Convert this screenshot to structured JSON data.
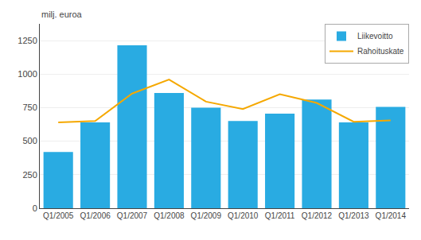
{
  "chart_data": {
    "type": "bar",
    "ylabel": "milj. euroa",
    "categories": [
      "Q1/2005",
      "Q1/2006",
      "Q1/2007",
      "Q1/2008",
      "Q1/2009",
      "Q1/2010",
      "Q1/2011",
      "Q1/2012",
      "Q1/2013",
      "Q1/2014"
    ],
    "series": [
      {
        "name": "Liikevoitto",
        "type": "bar",
        "color": "#29ABE2",
        "values": [
          420,
          640,
          1215,
          860,
          750,
          650,
          705,
          810,
          640,
          755
        ]
      },
      {
        "name": "Rahoituskate",
        "type": "line",
        "color": "#F5A800",
        "values": [
          640,
          650,
          855,
          960,
          795,
          740,
          850,
          785,
          645,
          655
        ]
      }
    ],
    "ylim": [
      0,
      1375
    ],
    "yticks": [
      0,
      250,
      500,
      750,
      1000,
      1250
    ],
    "grid": true,
    "legend": "upper right"
  }
}
